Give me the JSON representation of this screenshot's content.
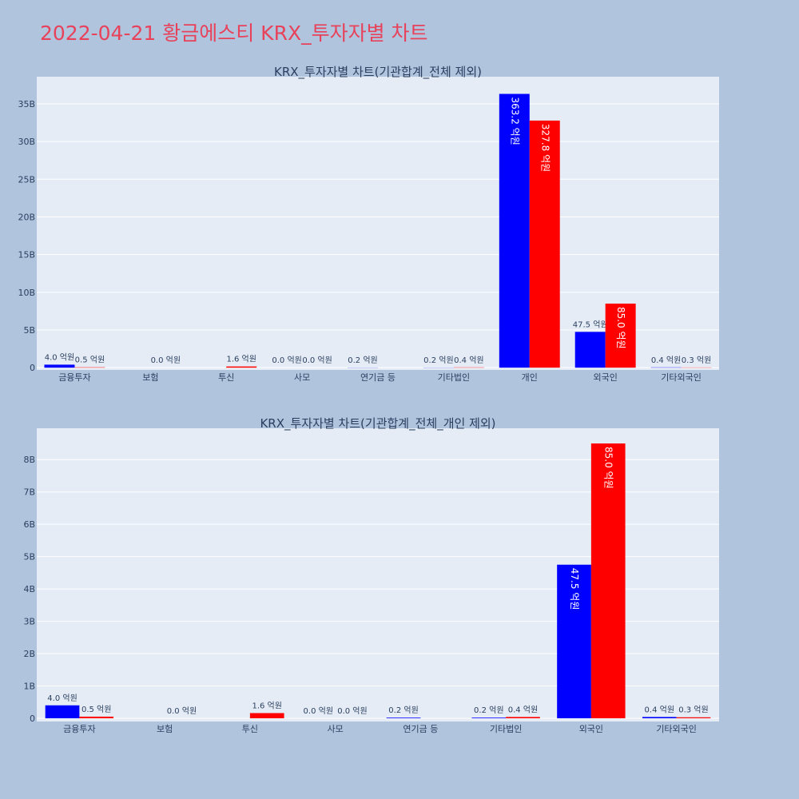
{
  "page": {
    "title": "2022-04-21 황금에스티 KRX_투자자별 차트"
  },
  "colors": {
    "background": "#b0c4de",
    "plot_bg": "#e5ecf6",
    "series_a": "#0000ff",
    "series_b": "#ff0000",
    "title": "#e8425a"
  },
  "chart_data": [
    {
      "type": "bar",
      "title": "KRX_투자자별 차트(기관합계_전체 제외)",
      "categories": [
        "금융투자",
        "보험",
        "투신",
        "사모",
        "연기금 등",
        "기타법인",
        "개인",
        "외국인",
        "기타외국인"
      ],
      "series": [
        {
          "values": [
            0.4,
            0.0,
            0.0,
            0.0,
            0.02,
            0.02,
            36.32,
            4.75,
            0.04
          ],
          "labels": [
            "4.0 억원",
            "",
            "",
            "0.0 억원",
            "0.2 억원",
            "0.2 억원",
            "363.2 억원",
            "47.5 억원",
            "0.4 억원"
          ]
        },
        {
          "values": [
            0.05,
            0.0,
            0.16,
            0.0,
            0.0,
            0.04,
            32.78,
            8.5,
            0.03
          ],
          "labels": [
            "0.5 억원",
            "0.0 억원",
            "1.6 억원",
            "0.0 억원",
            "",
            "0.4 억원",
            "327.8 억원",
            "85.0 억원",
            "0.3 억원"
          ]
        }
      ],
      "y_ticks": [
        "0",
        "5B",
        "10B",
        "15B",
        "20B",
        "25B",
        "30B",
        "35B"
      ],
      "y_tick_values": [
        0,
        5,
        10,
        15,
        20,
        25,
        30,
        35
      ],
      "ylim": [
        -0.3,
        38.6
      ],
      "grid": true
    },
    {
      "type": "bar",
      "title": "KRX_투자자별 차트(기관합계_전체_개인 제외)",
      "categories": [
        "금융투자",
        "보험",
        "투신",
        "사모",
        "연기금 등",
        "기타법인",
        "외국인",
        "기타외국인"
      ],
      "series": [
        {
          "values": [
            0.4,
            0.0,
            0.0,
            0.0,
            0.02,
            0.02,
            4.75,
            0.04
          ],
          "labels": [
            "4.0 억원",
            "",
            "",
            "0.0 억원",
            "0.2 억원",
            "0.2 억원",
            "47.5 억원",
            "0.4 억원"
          ]
        },
        {
          "values": [
            0.05,
            0.0,
            0.16,
            0.0,
            0.0,
            0.04,
            8.5,
            0.03
          ],
          "labels": [
            "0.5 억원",
            "0.0 억원",
            "1.6 억원",
            "0.0 억원",
            "",
            "0.4 억원",
            "85.0 억원",
            "0.3 억원"
          ]
        }
      ],
      "y_ticks": [
        "0",
        "1B",
        "2B",
        "3B",
        "4B",
        "5B",
        "6B",
        "7B",
        "8B"
      ],
      "y_tick_values": [
        0,
        1,
        2,
        3,
        4,
        5,
        6,
        7,
        8
      ],
      "ylim": [
        -0.1,
        8.97
      ],
      "grid": true
    }
  ]
}
